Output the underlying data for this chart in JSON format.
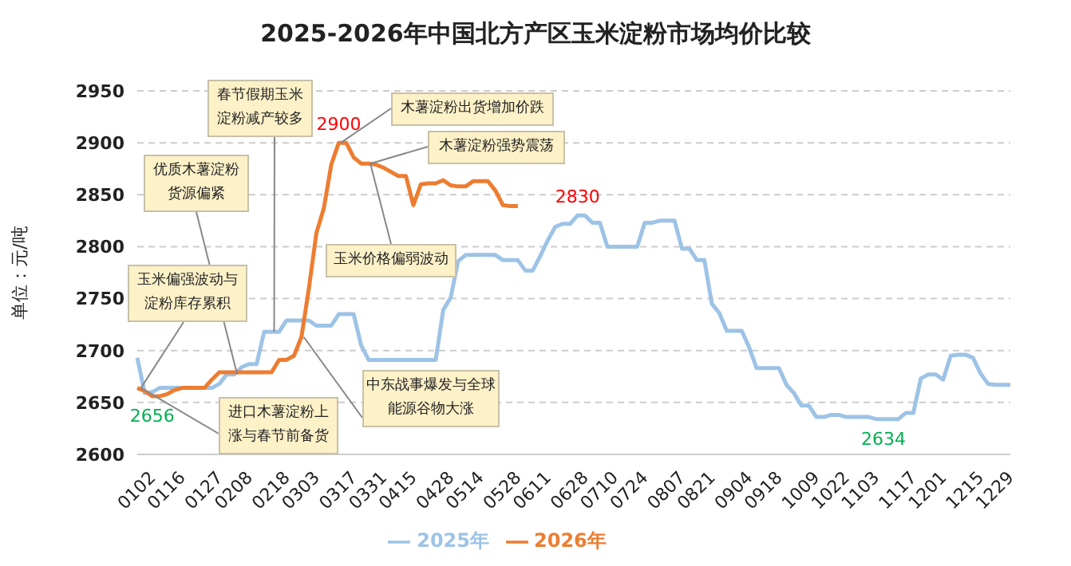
{
  "chart_data": {
    "type": "line",
    "title": "2025-2026年中国北方产区玉米淀粉市场均价比较",
    "ylabel": "单位：元/吨",
    "categories": [
      "0102",
      null,
      null,
      null,
      "0116",
      null,
      null,
      null,
      null,
      "0127",
      null,
      null,
      null,
      "0208",
      null,
      null,
      null,
      null,
      "0218",
      null,
      null,
      null,
      "0303",
      null,
      null,
      null,
      null,
      "0317",
      null,
      null,
      null,
      "0331",
      null,
      null,
      null,
      "0415",
      null,
      null,
      null,
      null,
      "0428",
      null,
      null,
      null,
      "0514",
      null,
      null,
      null,
      null,
      "0528",
      null,
      null,
      null,
      "0611",
      null,
      null,
      null,
      null,
      "0628",
      null,
      null,
      null,
      "0710",
      null,
      null,
      null,
      "0724",
      null,
      null,
      null,
      null,
      "0807",
      null,
      null,
      null,
      "0821",
      null,
      null,
      null,
      null,
      "0904",
      null,
      null,
      null,
      "0918",
      null,
      null,
      null,
      null,
      "1009",
      null,
      null,
      null,
      "1022",
      null,
      null,
      null,
      "1103",
      null,
      null,
      null,
      null,
      "1117",
      null,
      null,
      null,
      "1201",
      null,
      null,
      null,
      null,
      "1215",
      null,
      null,
      null,
      "1229",
      null,
      null
    ],
    "series": [
      {
        "name": "2025年",
        "color": "#9dc3e6",
        "values": [
          2693,
          2659,
          2660,
          2664,
          2664,
          2664,
          2664,
          2664,
          2664,
          2664,
          2664,
          2668,
          2677,
          2677,
          2684,
          2687,
          2687,
          2718,
          2718,
          2718,
          2729,
          2729,
          2729,
          2729,
          2724,
          2724,
          2724,
          2735,
          2735,
          2735,
          2705,
          2691,
          2691,
          2691,
          2691,
          2691,
          2691,
          2691,
          2691,
          2691,
          2691,
          2739,
          2751,
          2786,
          2792,
          2792,
          2792,
          2792,
          2792,
          2787,
          2787,
          2787,
          2777,
          2777,
          2791,
          2806,
          2819,
          2822,
          2822,
          2830,
          2830,
          2823,
          2823,
          2800,
          2800,
          2800,
          2800,
          2800,
          2823,
          2823,
          2825,
          2825,
          2825,
          2798,
          2798,
          2787,
          2787,
          2745,
          2736,
          2719,
          2719,
          2719,
          2703,
          2683,
          2683,
          2683,
          2683,
          2667,
          2659,
          2647,
          2647,
          2636,
          2636,
          2638,
          2638,
          2636,
          2636,
          2636,
          2636,
          2634,
          2634,
          2634,
          2634,
          2640,
          2640,
          2673,
          2677,
          2677,
          2672,
          2695,
          2696,
          2696,
          2693,
          2678,
          2668,
          2667,
          2667,
          2667
        ],
        "value_labels": [
          null,
          null,
          null,
          null,
          null,
          null,
          null,
          null,
          null,
          null,
          null,
          null,
          null,
          null,
          null,
          null,
          null,
          null,
          null,
          null,
          null,
          null,
          null,
          null,
          null,
          null,
          null,
          null,
          null,
          null,
          null,
          null,
          null,
          null,
          null,
          null,
          null,
          null,
          null,
          null,
          null,
          null,
          null,
          null,
          null,
          null,
          null,
          null,
          null,
          null,
          null,
          null,
          null,
          null,
          null,
          null,
          null,
          null,
          null,
          "2830",
          null,
          null,
          null,
          null,
          null,
          null,
          null,
          null,
          null,
          null,
          null,
          null,
          null,
          null,
          null,
          null,
          null,
          null,
          null,
          null,
          null,
          null,
          null,
          null,
          null,
          null,
          null,
          null,
          null,
          null,
          null,
          null,
          null,
          null,
          null,
          null,
          null,
          null,
          null,
          null,
          "2634",
          null,
          null,
          null,
          null,
          null,
          null,
          null,
          null,
          null,
          null,
          null,
          null,
          null,
          null,
          null,
          null,
          null
        ]
      },
      {
        "name": "2026年",
        "color": "#ed7d31",
        "values": [
          2664,
          2661,
          2656,
          2656,
          2658,
          2662,
          2664,
          2664,
          2664,
          2664,
          2672,
          2679,
          2679,
          2679,
          2679,
          2679,
          2679,
          2679,
          2679,
          2691,
          2691,
          2695,
          2713,
          2760,
          2813,
          2837,
          2879,
          2900,
          2900,
          2886,
          2880,
          2880,
          2879,
          2876,
          2872,
          2868,
          2868,
          2840,
          2860,
          2861,
          2861,
          2864,
          2859,
          2858,
          2858,
          2863,
          2863,
          2863,
          2854,
          2840,
          2839,
          2839,
          null,
          null,
          null,
          null,
          null,
          null,
          null,
          null,
          null,
          null,
          null,
          null,
          null,
          null,
          null,
          null,
          null,
          null,
          null,
          null,
          null,
          null,
          null,
          null,
          null,
          null,
          null,
          null,
          null,
          null,
          null,
          null,
          null,
          null,
          null,
          null,
          null,
          null,
          null,
          null,
          null,
          null,
          null,
          null,
          null,
          null,
          null,
          null,
          null,
          null,
          null,
          null,
          null,
          null,
          null,
          null,
          null,
          null,
          null,
          null,
          null,
          null,
          null,
          null,
          null,
          null
        ],
        "value_labels": [
          null,
          null,
          "2656",
          null,
          null,
          null,
          null,
          null,
          null,
          null,
          null,
          null,
          null,
          null,
          null,
          null,
          null,
          null,
          null,
          null,
          null,
          null,
          null,
          null,
          null,
          null,
          null,
          "2900",
          null,
          null,
          null,
          null,
          null,
          null,
          null,
          null,
          null,
          null,
          null,
          null,
          null,
          null,
          null,
          null,
          null,
          null,
          null,
          null,
          null,
          null,
          null,
          null,
          null,
          null,
          null,
          null,
          null,
          null,
          null,
          null,
          null,
          null,
          null,
          null,
          null,
          null,
          null,
          null,
          null,
          null,
          null,
          null,
          null,
          null,
          null,
          null,
          null,
          null,
          null,
          null,
          null,
          null,
          null,
          null,
          null,
          null,
          null,
          null,
          null,
          null,
          null,
          null,
          null,
          null,
          null,
          null,
          null,
          null,
          null,
          null,
          null,
          null,
          null,
          null,
          null,
          null,
          null,
          null,
          null,
          null,
          null,
          null,
          null,
          null,
          null,
          null,
          null,
          null
        ]
      }
    ],
    "ylim": [
      2600,
      2950
    ],
    "yticks": [
      2600,
      2650,
      2700,
      2750,
      2800,
      2850,
      2900,
      2950
    ],
    "grid": "y",
    "legend": "bottom",
    "marker": "none",
    "line_style": "solid",
    "annotations": [
      {
        "text": "春节假期玉米淀粉减产较多",
        "x": "0218",
        "y": 2718
      },
      {
        "text": "木薯淀粉出货增加价跌",
        "x": "0317",
        "y": 2900
      },
      {
        "text": "木薯淀粉强势震荡",
        "x": "0331",
        "y": 2880
      },
      {
        "text": "优质木薯淀粉货源偏紧",
        "x": "0208",
        "y": 2677
      },
      {
        "text": "玉米价格偏弱波动",
        "x": "0331",
        "y": 2880
      },
      {
        "text": "玉米偏强波动与淀粉库存累积",
        "x": "0102",
        "y": 2664
      },
      {
        "text": "中东战事爆发与全球能源谷物大涨",
        "x": "0303",
        "y": 2713
      },
      {
        "text": "进口木薯淀粉上涨与春节前备货",
        "x": "0102",
        "y": 2664
      }
    ]
  }
}
